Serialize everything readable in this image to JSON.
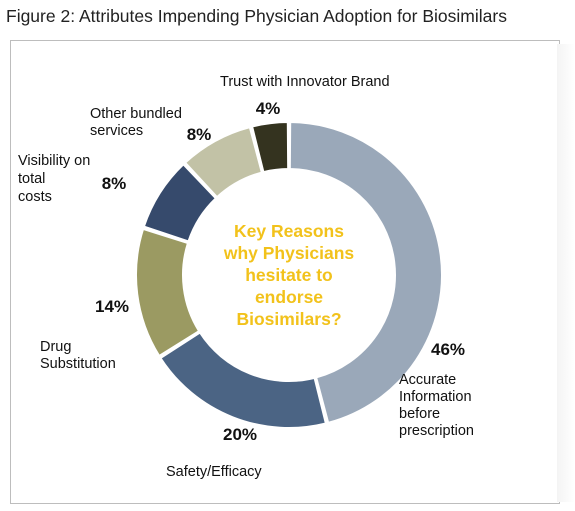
{
  "figure_title": "Figure 2: Attributes Impending Physician Adoption for Biosimilars",
  "center_text": [
    "Key Reasons",
    "why Physicians",
    "hesitate to",
    "endorse",
    "Biosimilars?"
  ],
  "colors": {
    "accurate_information": "#9aa8b9",
    "safety_efficacy": "#4b6484",
    "drug_substitution": "#9b9a62",
    "visibility_total_costs": "#364a6c",
    "other_bundled_services": "#c2c2a6",
    "trust_innovator_brand": "#34331f",
    "center_text": "#f2c21b"
  },
  "chart_data": {
    "type": "pie",
    "title": "Figure 2: Attributes Impending Physician Adoption for Biosimilars",
    "donut": true,
    "slices": [
      {
        "label": "Accurate Information before prescription",
        "label_lines": [
          "Accurate",
          "Information",
          "before",
          "prescription"
        ],
        "value": 46,
        "value_label": "46%",
        "color": "#9aa8b9"
      },
      {
        "label": "Safety/Efficacy",
        "label_lines": [
          "Safety/Efficacy"
        ],
        "value": 20,
        "value_label": "20%",
        "color": "#4b6484"
      },
      {
        "label": "Drug Substitution",
        "label_lines": [
          "Drug",
          "Substitution"
        ],
        "value": 14,
        "value_label": "14%",
        "color": "#9b9a62"
      },
      {
        "label": "Visibility on total costs",
        "label_lines": [
          "Visibility on",
          "total",
          "costs"
        ],
        "value": 8,
        "value_label": "8%",
        "color": "#364a6c"
      },
      {
        "label": "Other bundled services",
        "label_lines": [
          "Other bundled",
          "services"
        ],
        "value": 8,
        "value_label": "8%",
        "color": "#c2c2a6"
      },
      {
        "label": "Trust with Innovator Brand",
        "label_lines": [
          "Trust with Innovator Brand"
        ],
        "value": 4,
        "value_label": "4%",
        "color": "#34331f"
      }
    ]
  }
}
